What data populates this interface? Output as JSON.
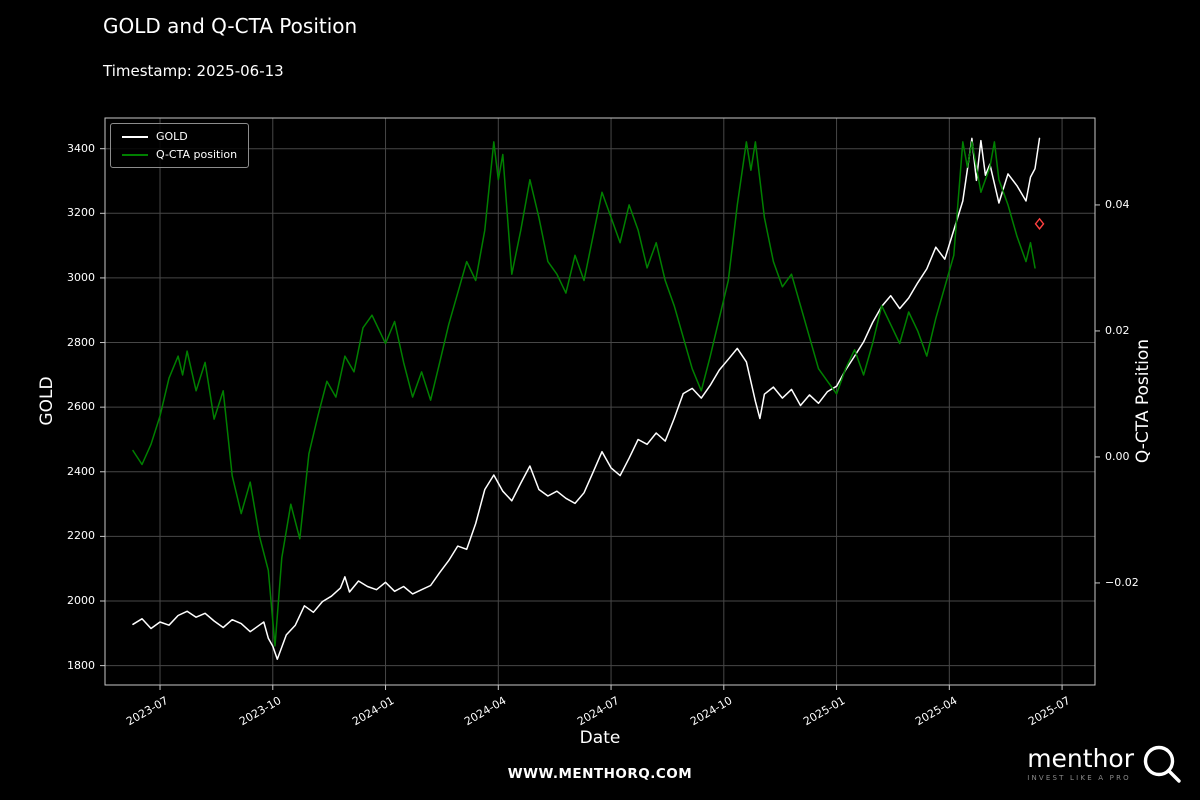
{
  "title": "GOLD and Q-CTA Position",
  "subtitle": "Timestamp: 2025-06-13",
  "legend": [
    {
      "label": "GOLD",
      "color": "#ffffff"
    },
    {
      "label": "Q-CTA position",
      "color": "#008000"
    }
  ],
  "footer": {
    "website": "WWW.MENTHORQ.COM",
    "brand": "menthor",
    "tagline": "INVEST LIKE A PRO"
  },
  "colors": {
    "background": "#000000",
    "grid": "#474747",
    "axis": "#c8c8c8",
    "text": "#ffffff",
    "gold_line": "#ffffff",
    "cta_line": "#008000",
    "marker": "#ff4040"
  },
  "chart_data": {
    "type": "line",
    "title": "GOLD and Q-CTA Position",
    "xlabel": "Date",
    "ylabel_left": "GOLD",
    "ylabel_right": "Q-CTA Position",
    "xlim": [
      2023.378,
      2025.573
    ],
    "ylim_left": [
      1740,
      3495
    ],
    "ylim_right": [
      -0.0362,
      0.0538
    ],
    "grid": true,
    "legend_position": "upper left",
    "x_ticks": [
      {
        "pos": 2023.5,
        "label": "2023-07"
      },
      {
        "pos": 2023.75,
        "label": "2023-10"
      },
      {
        "pos": 2024.0,
        "label": "2024-01"
      },
      {
        "pos": 2024.25,
        "label": "2024-04"
      },
      {
        "pos": 2024.5,
        "label": "2024-07"
      },
      {
        "pos": 2024.75,
        "label": "2024-10"
      },
      {
        "pos": 2025.0,
        "label": "2025-01"
      },
      {
        "pos": 2025.25,
        "label": "2025-04"
      },
      {
        "pos": 2025.5,
        "label": "2025-07"
      }
    ],
    "y_ticks_left": [
      1800,
      2000,
      2200,
      2400,
      2600,
      2800,
      3000,
      3200,
      3400
    ],
    "y_ticks_right": [
      {
        "value": -0.02,
        "label": "−0.02"
      },
      {
        "value": 0.0,
        "label": "0.00"
      },
      {
        "value": 0.02,
        "label": "0.02"
      },
      {
        "value": 0.04,
        "label": "0.04"
      }
    ],
    "series": [
      {
        "name": "GOLD",
        "axis": "left",
        "color": "#ffffff",
        "x": [
          2023.44,
          2023.46,
          2023.48,
          2023.5,
          2023.52,
          2023.54,
          2023.56,
          2023.58,
          2023.6,
          2023.62,
          2023.64,
          2023.66,
          2023.68,
          2023.7,
          2023.72,
          2023.73,
          2023.74,
          2023.75,
          2023.76,
          2023.78,
          2023.8,
          2023.82,
          2023.84,
          2023.86,
          2023.88,
          2023.9,
          2023.91,
          2023.92,
          2023.94,
          2023.96,
          2023.98,
          2024.0,
          2024.02,
          2024.04,
          2024.06,
          2024.08,
          2024.1,
          2024.12,
          2024.14,
          2024.16,
          2024.18,
          2024.2,
          2024.22,
          2024.24,
          2024.26,
          2024.28,
          2024.3,
          2024.32,
          2024.34,
          2024.36,
          2024.38,
          2024.4,
          2024.42,
          2024.44,
          2024.46,
          2024.48,
          2024.5,
          2024.52,
          2024.54,
          2024.56,
          2024.58,
          2024.6,
          2024.62,
          2024.64,
          2024.66,
          2024.68,
          2024.7,
          2024.72,
          2024.74,
          2024.76,
          2024.78,
          2024.8,
          2024.82,
          2024.83,
          2024.84,
          2024.86,
          2024.88,
          2024.9,
          2024.92,
          2024.94,
          2024.96,
          2024.98,
          2025.0,
          2025.02,
          2025.04,
          2025.06,
          2025.08,
          2025.1,
          2025.12,
          2025.14,
          2025.16,
          2025.18,
          2025.2,
          2025.22,
          2025.24,
          2025.26,
          2025.28,
          2025.3,
          2025.31,
          2025.32,
          2025.33,
          2025.34,
          2025.36,
          2025.38,
          2025.4,
          2025.42,
          2025.43,
          2025.44,
          2025.45
        ],
        "y": [
          1928,
          1945,
          1915,
          1935,
          1925,
          1955,
          1968,
          1950,
          1962,
          1938,
          1918,
          1942,
          1930,
          1905,
          1925,
          1935,
          1885,
          1860,
          1820,
          1895,
          1925,
          1985,
          1965,
          1998,
          2015,
          2040,
          2075,
          2028,
          2062,
          2045,
          2035,
          2058,
          2030,
          2045,
          2022,
          2035,
          2048,
          2088,
          2125,
          2170,
          2160,
          2240,
          2345,
          2390,
          2340,
          2310,
          2365,
          2418,
          2345,
          2325,
          2340,
          2318,
          2302,
          2335,
          2398,
          2462,
          2412,
          2388,
          2442,
          2500,
          2485,
          2520,
          2495,
          2565,
          2642,
          2658,
          2628,
          2668,
          2715,
          2748,
          2782,
          2740,
          2618,
          2565,
          2640,
          2662,
          2628,
          2655,
          2605,
          2638,
          2612,
          2648,
          2665,
          2715,
          2758,
          2802,
          2862,
          2912,
          2945,
          2905,
          2938,
          2985,
          3028,
          3095,
          3058,
          3148,
          3238,
          3432,
          3302,
          3425,
          3318,
          3352,
          3232,
          3322,
          3285,
          3238,
          3312,
          3338,
          3432
        ]
      },
      {
        "name": "Q-CTA position",
        "axis": "right",
        "color": "#008000",
        "x": [
          2023.44,
          2023.46,
          2023.48,
          2023.5,
          2023.52,
          2023.54,
          2023.55,
          2023.56,
          2023.58,
          2023.6,
          2023.62,
          2023.64,
          2023.66,
          2023.68,
          2023.7,
          2023.72,
          2023.74,
          2023.755,
          2023.77,
          2023.79,
          2023.81,
          2023.83,
          2023.85,
          2023.87,
          2023.89,
          2023.91,
          2023.93,
          2023.95,
          2023.97,
          2024.0,
          2024.02,
          2024.04,
          2024.06,
          2024.08,
          2024.1,
          2024.12,
          2024.14,
          2024.16,
          2024.18,
          2024.2,
          2024.22,
          2024.24,
          2024.25,
          2024.26,
          2024.27,
          2024.28,
          2024.3,
          2024.32,
          2024.34,
          2024.36,
          2024.38,
          2024.4,
          2024.42,
          2024.44,
          2024.46,
          2024.48,
          2024.5,
          2024.52,
          2024.54,
          2024.56,
          2024.58,
          2024.6,
          2024.62,
          2024.64,
          2024.66,
          2024.68,
          2024.7,
          2024.72,
          2024.74,
          2024.76,
          2024.78,
          2024.8,
          2024.81,
          2024.82,
          2024.84,
          2024.86,
          2024.88,
          2024.9,
          2024.92,
          2024.94,
          2024.96,
          2024.98,
          2025.0,
          2025.02,
          2025.04,
          2025.06,
          2025.08,
          2025.1,
          2025.12,
          2025.14,
          2025.16,
          2025.18,
          2025.2,
          2025.22,
          2025.24,
          2025.26,
          2025.28,
          2025.29,
          2025.3,
          2025.32,
          2025.34,
          2025.35,
          2025.36,
          2025.38,
          2025.4,
          2025.42,
          2025.43,
          2025.44
        ],
        "y": [
          0.001,
          -0.0012,
          0.002,
          0.0065,
          0.0125,
          0.016,
          0.013,
          0.0168,
          0.0105,
          0.015,
          0.006,
          0.0105,
          -0.003,
          -0.009,
          -0.004,
          -0.0125,
          -0.018,
          -0.03,
          -0.016,
          -0.0075,
          -0.013,
          0.0005,
          0.0065,
          0.012,
          0.0095,
          0.016,
          0.0135,
          0.0205,
          0.0225,
          0.018,
          0.0215,
          0.015,
          0.0095,
          0.0135,
          0.009,
          0.015,
          0.021,
          0.026,
          0.031,
          0.028,
          0.036,
          0.05,
          0.044,
          0.048,
          0.0385,
          0.029,
          0.036,
          0.044,
          0.038,
          0.031,
          0.029,
          0.026,
          0.032,
          0.028,
          0.035,
          0.042,
          0.038,
          0.034,
          0.04,
          0.036,
          0.03,
          0.034,
          0.028,
          0.024,
          0.019,
          0.014,
          0.0105,
          0.016,
          0.022,
          0.028,
          0.04,
          0.05,
          0.0455,
          0.05,
          0.038,
          0.031,
          0.027,
          0.029,
          0.024,
          0.019,
          0.014,
          0.012,
          0.01,
          0.014,
          0.017,
          0.013,
          0.018,
          0.024,
          0.021,
          0.018,
          0.023,
          0.02,
          0.016,
          0.022,
          0.027,
          0.032,
          0.05,
          0.046,
          0.05,
          0.042,
          0.046,
          0.05,
          0.044,
          0.04,
          0.035,
          0.031,
          0.034,
          0.03
        ]
      }
    ],
    "marker": {
      "type": "diamond",
      "axis": "right",
      "x": 2025.45,
      "y": 0.037,
      "color": "#ff4040"
    }
  }
}
